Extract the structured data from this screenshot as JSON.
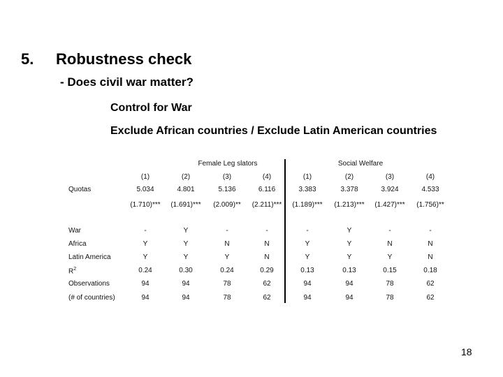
{
  "slide": {
    "number": "5.",
    "title": "Robustness check",
    "subtitle": "- Does civil war matter?",
    "bullets": [
      "Control for War",
      "Exclude African countries / Exclude Latin American countries"
    ],
    "page": "18"
  },
  "table": {
    "groups": [
      "Female Leg slators",
      "Social Welfare"
    ],
    "columns": [
      "(1)",
      "(2)",
      "(3)",
      "(4)",
      "(1)",
      "(2)",
      "(3)",
      "(4)"
    ],
    "rows": [
      {
        "label": "Quotas",
        "values": [
          "5.034",
          "4.801",
          "5.136",
          "6.116",
          "3.383",
          "3.378",
          "3.924",
          "4.533"
        ]
      },
      {
        "label": "",
        "values": [
          "(1.710)***",
          "(1.691)***",
          "(2.009)**",
          "(2.211)***",
          "(1.189)***",
          "(1.213)***",
          "(1.427)***",
          "(1.756)**"
        ]
      },
      {
        "label": "War",
        "values": [
          "-",
          "Y",
          "-",
          "-",
          "-",
          "Y",
          "-",
          "-"
        ]
      },
      {
        "label": "Africa",
        "values": [
          "Y",
          "Y",
          "N",
          "N",
          "Y",
          "Y",
          "N",
          "N"
        ]
      },
      {
        "label": "Latin America",
        "values": [
          "Y",
          "Y",
          "Y",
          "N",
          "Y",
          "Y",
          "Y",
          "N"
        ]
      },
      {
        "label": "R2",
        "values": [
          "0.24",
          "0.30",
          "0.24",
          "0.29",
          "0.13",
          "0.13",
          "0.15",
          "0.18"
        ]
      },
      {
        "label": "Observations",
        "values": [
          "94",
          "94",
          "78",
          "62",
          "94",
          "94",
          "78",
          "62"
        ]
      },
      {
        "label": "(# of countries)",
        "values": [
          "94",
          "94",
          "78",
          "62",
          "94",
          "94",
          "78",
          "62"
        ]
      }
    ]
  }
}
